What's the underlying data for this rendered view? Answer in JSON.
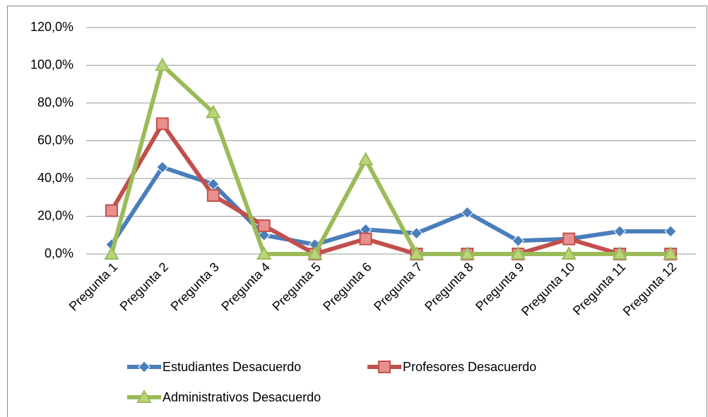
{
  "chart_data": {
    "type": "line",
    "categories": [
      "Pregunta 1",
      "Pregunta 2",
      "Pregunta 3",
      "Pregunta 4",
      "Pregunta 5",
      "Pregunta 6",
      "Pregunta 7",
      "Pregunta 8",
      "Pregunta 9",
      "Pregunta 10",
      "Pregunta 11",
      "Pregunta 12"
    ],
    "series": [
      {
        "name": "Estudiantes Desacuerdo",
        "color": "#4a7ebb",
        "marker": "diamond",
        "values": [
          5,
          46,
          37,
          10,
          5,
          13,
          11,
          22,
          7,
          8,
          12,
          12
        ]
      },
      {
        "name": "Profesores Desacuerdo",
        "color": "#c0504d",
        "marker": "square",
        "values": [
          23,
          69,
          31,
          15,
          0,
          8,
          0,
          0,
          0,
          8,
          0,
          0
        ]
      },
      {
        "name": "Administrativos Desacuerdo",
        "color": "#9bbb59",
        "marker": "triangle",
        "values": [
          0,
          100,
          75,
          0,
          0,
          50,
          0,
          0,
          0,
          0,
          0,
          0
        ]
      }
    ],
    "ylim": [
      0,
      120
    ],
    "yticks": [
      {
        "value": 0,
        "label": "0,0%"
      },
      {
        "value": 20,
        "label": "20,0%"
      },
      {
        "value": 40,
        "label": "40,0%"
      },
      {
        "value": 60,
        "label": "60,0%"
      },
      {
        "value": 80,
        "label": "80,0%"
      },
      {
        "value": 100,
        "label": "100,0%"
      },
      {
        "value": 120,
        "label": "120,0%"
      }
    ],
    "grid": true,
    "legend": "bottom"
  }
}
